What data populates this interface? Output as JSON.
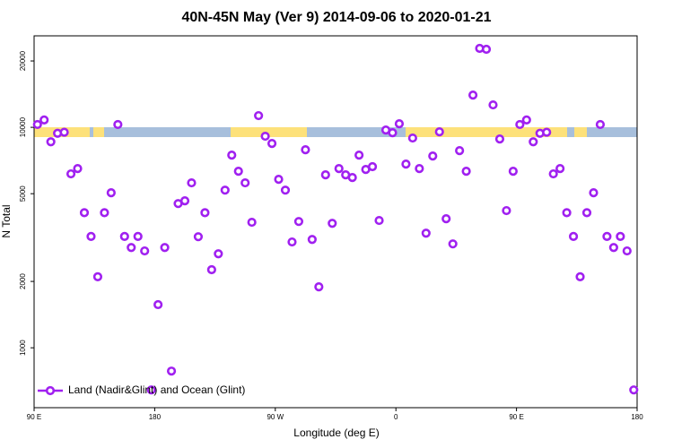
{
  "chart_data": {
    "type": "scatter",
    "title": "40N-45N May (Ver 9)   2014-09-06 to 2020-01-21",
    "x_label": "Longitude (deg E)",
    "y_label": "N Total",
    "log_y": true,
    "xlim": [
      90,
      540
    ],
    "ylim": [
      535,
      26000
    ],
    "xticks": [
      {
        "value": 90,
        "label": "90 E"
      },
      {
        "value": 180,
        "label": "180"
      },
      {
        "value": 270,
        "label": "90 W"
      },
      {
        "value": 360,
        "label": "0"
      },
      {
        "value": 450,
        "label": "90 E"
      },
      {
        "value": 540,
        "label": "180"
      }
    ],
    "yticks": [
      1000,
      2000,
      5000,
      10000,
      20000
    ],
    "legend": "bottom-left",
    "x": [
      92.5,
      97.5,
      102.5,
      107.5,
      112.5,
      117.5,
      122.5,
      127.5,
      132.5,
      137.5,
      142.5,
      147.5,
      152.5,
      157.5,
      162.5,
      167.5,
      172.5,
      177.5,
      182.5,
      187.5,
      192.5,
      197.5,
      202.5,
      207.5,
      212.5,
      217.5,
      222.5,
      227.5,
      232.5,
      237.5,
      242.5,
      247.5,
      252.5,
      257.5,
      262.5,
      267.5,
      272.5,
      277.5,
      282.5,
      287.5,
      292.5,
      297.5,
      302.5,
      307.5,
      312.5,
      317.5,
      322.5,
      327.5,
      332.5,
      337.5,
      342.5,
      347.5,
      352.5,
      357.5,
      362.5,
      367.5,
      372.5,
      377.5,
      382.5,
      387.5,
      392.5,
      397.5,
      402.5,
      407.5,
      412.5,
      417.5,
      422.5,
      427.5,
      432.5,
      437.5,
      442.5,
      447.5,
      452.5,
      457.5,
      462.5,
      467.5,
      472.5,
      477.5,
      482.5,
      487.5,
      492.5,
      497.5,
      502.5,
      507.5,
      512.5,
      517.5,
      522.5,
      527.5,
      532.5,
      537.5
    ],
    "series": [
      {
        "name": "Land (Nadir&Glint) and Ocean (Glint)",
        "color": "#a020f0",
        "values": [
          10300,
          10800,
          8600,
          9400,
          9500,
          6150,
          6500,
          4100,
          3200,
          2100,
          4100,
          5050,
          10300,
          3200,
          2850,
          3200,
          2750,
          644,
          1570,
          2850,
          784,
          4510,
          4640,
          5600,
          3190,
          4100,
          2260,
          2670,
          5190,
          7480,
          6320,
          5600,
          3710,
          11300,
          9110,
          8450,
          5810,
          5190,
          3020,
          3740,
          7910,
          3100,
          1890,
          6090,
          3670,
          6500,
          6090,
          5920,
          7480,
          6440,
          6630,
          3780,
          9720,
          9450,
          10380,
          6810,
          8940,
          6500,
          3310,
          7410,
          9540,
          3850,
          2960,
          7840,
          6320,
          14000,
          22800,
          22600,
          12640,
          8850,
          4190,
          6320,
          10300,
          10800,
          8600,
          9400,
          9500,
          6150,
          6500,
          4100,
          3200,
          2100,
          4100,
          5050,
          10300,
          3200,
          2850,
          3200,
          2750,
          644
        ]
      }
    ]
  }
}
